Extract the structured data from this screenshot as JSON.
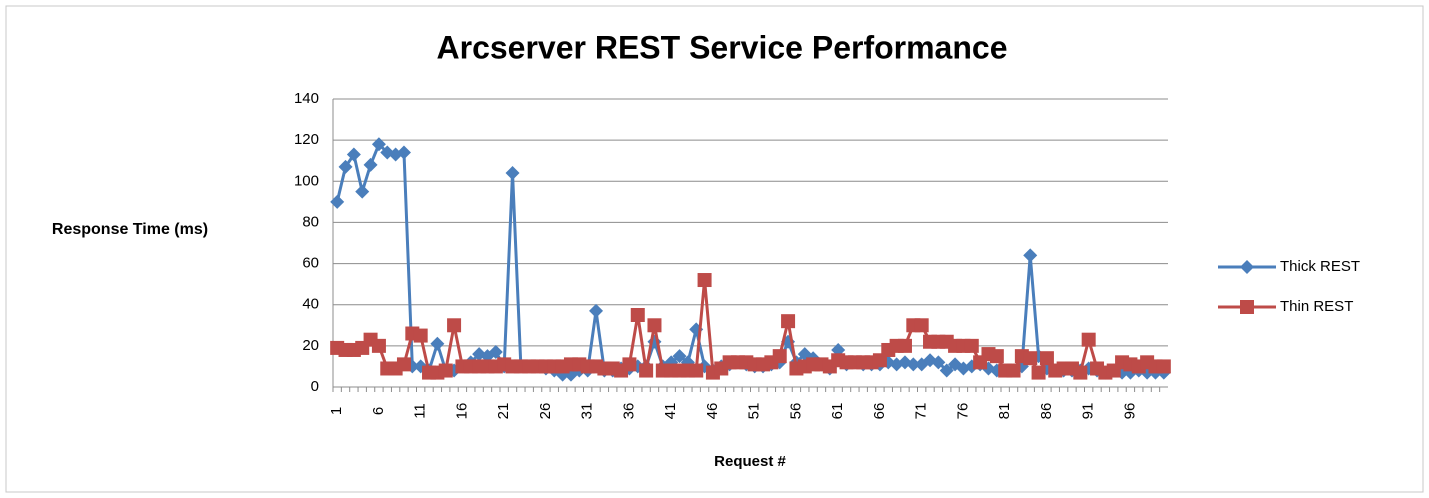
{
  "chart_data": {
    "type": "line",
    "title": "Arcserver REST Service Performance",
    "y_label": "Response Time (ms)",
    "x_label": "Request #",
    "categories": [
      "1",
      null,
      null,
      null,
      null,
      "6",
      null,
      null,
      null,
      null,
      "11",
      null,
      null,
      null,
      null,
      "16",
      null,
      null,
      null,
      null,
      "21",
      null,
      null,
      null,
      null,
      "26",
      null,
      null,
      null,
      null,
      "31",
      null,
      null,
      null,
      null,
      "36",
      null,
      null,
      null,
      null,
      "41",
      null,
      null,
      null,
      null,
      "46",
      null,
      null,
      null,
      null,
      "51",
      null,
      null,
      null,
      null,
      "56",
      null,
      null,
      null,
      null,
      "61",
      null,
      null,
      null,
      null,
      "66",
      null,
      null,
      null,
      null,
      "71",
      null,
      null,
      null,
      null,
      "76",
      null,
      null,
      null,
      null,
      "81",
      null,
      null,
      null,
      null,
      "86",
      null,
      null,
      null,
      null,
      "91",
      null,
      null,
      null,
      null,
      "96",
      null,
      null,
      null,
      null
    ],
    "series": [
      {
        "name": "Thick REST",
        "color": "#4a7ebb",
        "marker": "diamond",
        "values": [
          90,
          107,
          113,
          95,
          108,
          118,
          114,
          113,
          114,
          10,
          10,
          8,
          21,
          8,
          8,
          10,
          12,
          16,
          15,
          17,
          10,
          104,
          10,
          10,
          10,
          9,
          8,
          6,
          6,
          8,
          8,
          37,
          8,
          8,
          9,
          9,
          10,
          10,
          22,
          10,
          12,
          15,
          12,
          28,
          10,
          8,
          10,
          11,
          12,
          11,
          10,
          10,
          11,
          12,
          22,
          12,
          16,
          14,
          11,
          9,
          18,
          11,
          12,
          11,
          11,
          11,
          12,
          11,
          12,
          11,
          11,
          13,
          12,
          8,
          11,
          9,
          10,
          11,
          9,
          8,
          8,
          8,
          10,
          64,
          15,
          9,
          8,
          8,
          8,
          8,
          9,
          8,
          7,
          8,
          7,
          7,
          8,
          7,
          7,
          7
        ]
      },
      {
        "name": "Thin REST",
        "color": "#be4b48",
        "marker": "square",
        "values": [
          19,
          18,
          18,
          19,
          23,
          20,
          9,
          9,
          11,
          26,
          25,
          7,
          7,
          8,
          30,
          10,
          10,
          10,
          10,
          10,
          11,
          10,
          10,
          10,
          10,
          10,
          10,
          10,
          11,
          11,
          10,
          10,
          9,
          9,
          8,
          11,
          35,
          8,
          30,
          8,
          8,
          8,
          8,
          8,
          52,
          7,
          9,
          12,
          12,
          12,
          11,
          11,
          12,
          15,
          32,
          9,
          10,
          11,
          11,
          10,
          13,
          12,
          12,
          12,
          12,
          13,
          18,
          20,
          20,
          30,
          30,
          22,
          22,
          22,
          20,
          20,
          20,
          12,
          16,
          15,
          8,
          8,
          15,
          14,
          7,
          14,
          8,
          9,
          9,
          7,
          23,
          9,
          7,
          8,
          12,
          11,
          10,
          12,
          10,
          10
        ]
      }
    ],
    "ylim": [
      0,
      140
    ],
    "yticks": [
      0,
      20,
      40,
      60,
      80,
      100,
      120,
      140
    ],
    "grid": true
  }
}
